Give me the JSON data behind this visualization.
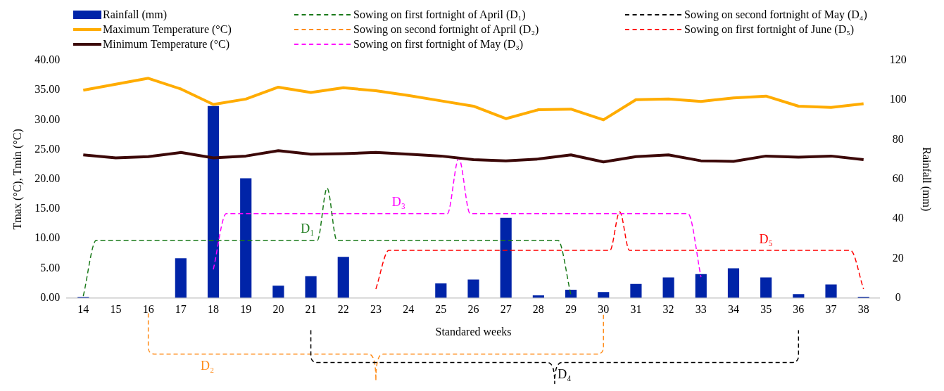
{
  "chart_data": {
    "type": "bar",
    "xlabel": "Standared weeks",
    "ylabel": "Tmax (°C), Tmin (°C)",
    "y2label": "Rainfall (mm)",
    "x": [
      14,
      15,
      16,
      17,
      18,
      19,
      20,
      21,
      22,
      23,
      24,
      25,
      26,
      27,
      28,
      29,
      30,
      31,
      32,
      33,
      34,
      35,
      36,
      37,
      38
    ],
    "xlim": [
      13.5,
      38.5
    ],
    "xticks": [
      14,
      15,
      16,
      17,
      18,
      19,
      20,
      21,
      22,
      23,
      24,
      25,
      26,
      27,
      28,
      29,
      30,
      31,
      32,
      33,
      34,
      35,
      36,
      37,
      38
    ],
    "series": [
      {
        "name": "Rainfall (mm)",
        "axis": "y2",
        "color": "#0024a8",
        "values": [
          0.5,
          0,
          0,
          20,
          97,
          60.5,
          6.2,
          11,
          20.7,
          0,
          0,
          7.3,
          9.3,
          40.5,
          1.3,
          4.1,
          3,
          7.1,
          10.3,
          12,
          15,
          10.3,
          1.9,
          6.8,
          0.6
        ]
      },
      {
        "name": "Maximum Temperature (°C)",
        "type": "line",
        "color": "#ffac00",
        "values": [
          35.0,
          36.0,
          37.0,
          35.2,
          32.6,
          33.5,
          35.5,
          34.6,
          35.4,
          34.9,
          34.1,
          33.2,
          32.3,
          30.2,
          31.7,
          31.8,
          30.0,
          33.4,
          33.5,
          33.1,
          33.7,
          34.0,
          32.3,
          32.1,
          32.7
        ]
      },
      {
        "name": "Minimum Temperature (°C)",
        "type": "line",
        "color": "#3c0808",
        "values": [
          24.1,
          23.6,
          23.8,
          24.5,
          23.6,
          23.9,
          24.8,
          24.2,
          24.3,
          24.5,
          24.2,
          23.9,
          23.3,
          23.1,
          23.4,
          24.1,
          22.9,
          23.8,
          24.1,
          23.1,
          23.0,
          23.9,
          23.7,
          23.9,
          23.3
        ]
      },
      {
        "name": "Sowing on first fortnight of April (D₁)",
        "type": "line",
        "line_style": "dashed",
        "color": "#1a7a1a",
        "x": [
          14,
          14.4,
          21.2,
          21.5,
          21.8,
          28.6,
          29
        ],
        "values": [
          0.3,
          9.7,
          9.7,
          18.5,
          9.7,
          9.7,
          0.5
        ]
      },
      {
        "name": "Sowing on first fortnight of May (D₃)",
        "type": "line",
        "line_style": "dashed",
        "color": "#ff00ff",
        "x": [
          18,
          18.4,
          25.2,
          25.55,
          25.9,
          32.6,
          33
        ],
        "values": [
          4.8,
          14.2,
          14.2,
          23.5,
          14.2,
          14.2,
          3.5
        ]
      },
      {
        "name": "Sowing on first fortnight of June (D₅)",
        "type": "line",
        "line_style": "dashed",
        "color": "#ff0000",
        "x": [
          23,
          23.4,
          30.2,
          30.5,
          30.8,
          37.6,
          38
        ],
        "values": [
          1.5,
          8,
          8,
          14.5,
          8,
          8,
          1.5
        ]
      }
    ],
    "ylim": [
      0,
      40
    ],
    "yticks": [
      {
        "value": 0,
        "label": "0.00"
      },
      {
        "value": 5,
        "label": "5.00"
      },
      {
        "value": 10,
        "label": "10.00"
      },
      {
        "value": 15,
        "label": "15.00"
      },
      {
        "value": 20,
        "label": "20.00"
      },
      {
        "value": 25,
        "label": "25.00"
      },
      {
        "value": 30,
        "label": "30.00"
      },
      {
        "value": 35,
        "label": "35.00"
      },
      {
        "value": 40,
        "label": "40.00"
      }
    ],
    "y2lim": [
      0,
      120
    ],
    "y2ticks": [
      0,
      20,
      40,
      60,
      80,
      100,
      120
    ],
    "annotations": [
      "Sowing on second fortnight of April (D₂)",
      "Sowing on second fortnight of May (D₄)",
      "D₂",
      "D₄",
      "D₁",
      "D₃",
      "D₅"
    ],
    "legend": "top",
    "grid": false,
    "marker": "none"
  }
}
